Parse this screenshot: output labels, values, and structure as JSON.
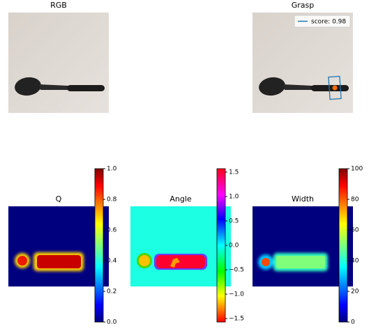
{
  "chart_data": [
    {
      "type": "image",
      "title": "RGB"
    },
    {
      "type": "image",
      "title": "Grasp",
      "legend": {
        "label": "score: 0.98",
        "loc": "upper right",
        "color": "#1f77b4"
      }
    },
    {
      "type": "heatmap",
      "title": "Q",
      "colormap": "jet",
      "clim": [
        0,
        1
      ],
      "cticks": [
        {
          "value": 0,
          "label": "0.0"
        },
        0.2,
        0.4,
        0.6,
        0.8,
        {
          "value": 1,
          "label": "1.0"
        }
      ]
    },
    {
      "type": "heatmap",
      "title": "Angle",
      "colormap": "hsv",
      "clim": [
        -1.57,
        1.57
      ],
      "cticks": [
        {
          "value": -1.5,
          "label": "−1.5"
        },
        {
          "value": -1,
          "label": "−1.0"
        },
        {
          "value": -0.5,
          "label": "−0.5"
        },
        {
          "value": 0,
          "label": "0.0"
        },
        0.5,
        {
          "value": 1,
          "label": "1.0"
        },
        1.5
      ]
    },
    {
      "type": "heatmap",
      "title": "Width",
      "colormap": "jet",
      "clim": [
        0,
        100
      ],
      "cticks": [
        0,
        20,
        40,
        60,
        80,
        100
      ]
    }
  ]
}
